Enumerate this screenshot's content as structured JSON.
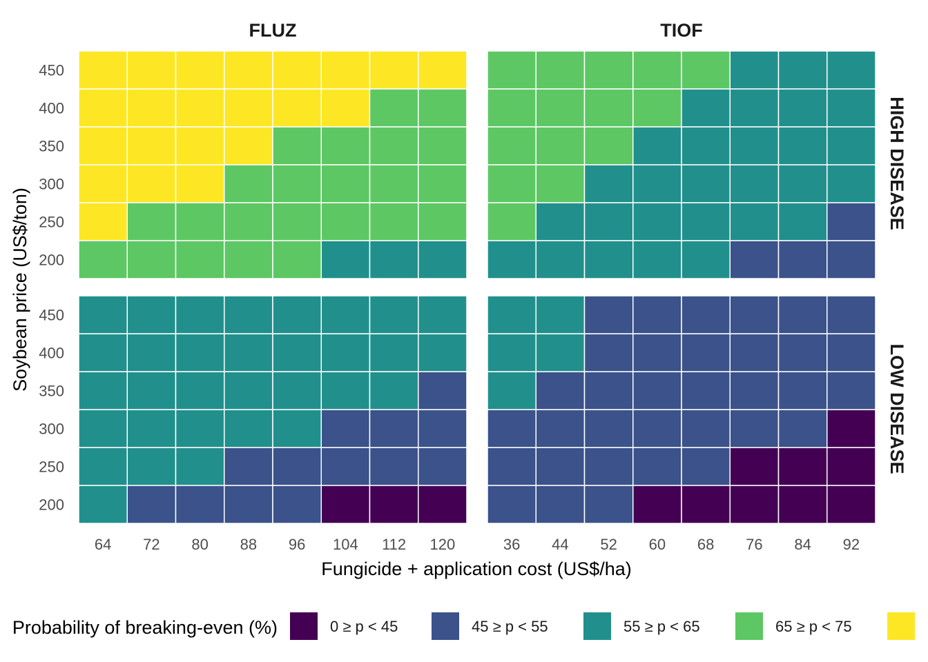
{
  "chart_data": {
    "type": "heatmap",
    "facet_columns": [
      "FLUZ",
      "TIOF"
    ],
    "facet_rows": [
      "HIGH DISEASE",
      "LOW DISEASE"
    ],
    "xlabel": "Fungicide + application cost (US$/ha)",
    "ylabel": "Soybean price (US$/ton)",
    "x_categories": {
      "FLUZ": [
        "64",
        "72",
        "80",
        "88",
        "96",
        "104",
        "112",
        "120"
      ],
      "TIOF": [
        "36",
        "44",
        "52",
        "60",
        "68",
        "76",
        "84",
        "92"
      ]
    },
    "y_categories": [
      "200",
      "250",
      "300",
      "350",
      "400",
      "450"
    ],
    "legend": {
      "title": "Probability of breaking-even (%)",
      "position": "bottom",
      "classes": [
        {
          "label": "0 ≥ p < 45",
          "color": "#440154"
        },
        {
          "label": "45 ≥ p < 55",
          "color": "#3B528B"
        },
        {
          "label": "55 ≥ p < 65",
          "color": "#21908C"
        },
        {
          "label": "65 ≥ p < 75",
          "color": "#5DC863"
        },
        {
          "label": "",
          "color": "#FDE725"
        }
      ]
    },
    "cells_note_rows_top_to_bottom_450_to_200": true,
    "panels": [
      {
        "column": "FLUZ",
        "row": "HIGH DISEASE",
        "classes": [
          [
            4,
            4,
            4,
            4,
            4,
            4,
            4,
            4
          ],
          [
            4,
            4,
            4,
            4,
            4,
            4,
            3,
            3
          ],
          [
            4,
            4,
            4,
            4,
            3,
            3,
            3,
            3
          ],
          [
            4,
            4,
            4,
            3,
            3,
            3,
            3,
            3
          ],
          [
            4,
            3,
            3,
            3,
            3,
            3,
            3,
            3
          ],
          [
            3,
            3,
            3,
            3,
            3,
            2,
            2,
            2
          ]
        ]
      },
      {
        "column": "TIOF",
        "row": "HIGH DISEASE",
        "classes": [
          [
            3,
            3,
            3,
            3,
            3,
            2,
            2,
            2
          ],
          [
            3,
            3,
            3,
            3,
            2,
            2,
            2,
            2
          ],
          [
            3,
            3,
            3,
            2,
            2,
            2,
            2,
            2
          ],
          [
            3,
            3,
            2,
            2,
            2,
            2,
            2,
            2
          ],
          [
            3,
            2,
            2,
            2,
            2,
            2,
            2,
            1
          ],
          [
            2,
            2,
            2,
            2,
            2,
            1,
            1,
            1
          ]
        ]
      },
      {
        "column": "FLUZ",
        "row": "LOW DISEASE",
        "classes": [
          [
            2,
            2,
            2,
            2,
            2,
            2,
            2,
            2
          ],
          [
            2,
            2,
            2,
            2,
            2,
            2,
            2,
            2
          ],
          [
            2,
            2,
            2,
            2,
            2,
            2,
            2,
            1
          ],
          [
            2,
            2,
            2,
            2,
            2,
            1,
            1,
            1
          ],
          [
            2,
            2,
            2,
            1,
            1,
            1,
            1,
            1
          ],
          [
            2,
            1,
            1,
            1,
            1,
            0,
            0,
            0
          ]
        ]
      },
      {
        "column": "TIOF",
        "row": "LOW DISEASE",
        "classes": [
          [
            2,
            2,
            1,
            1,
            1,
            1,
            1,
            1
          ],
          [
            2,
            2,
            1,
            1,
            1,
            1,
            1,
            1
          ],
          [
            2,
            1,
            1,
            1,
            1,
            1,
            1,
            1
          ],
          [
            1,
            1,
            1,
            1,
            1,
            1,
            1,
            0
          ],
          [
            1,
            1,
            1,
            1,
            1,
            0,
            0,
            0
          ],
          [
            1,
            1,
            1,
            0,
            0,
            0,
            0,
            0
          ]
        ]
      }
    ]
  }
}
